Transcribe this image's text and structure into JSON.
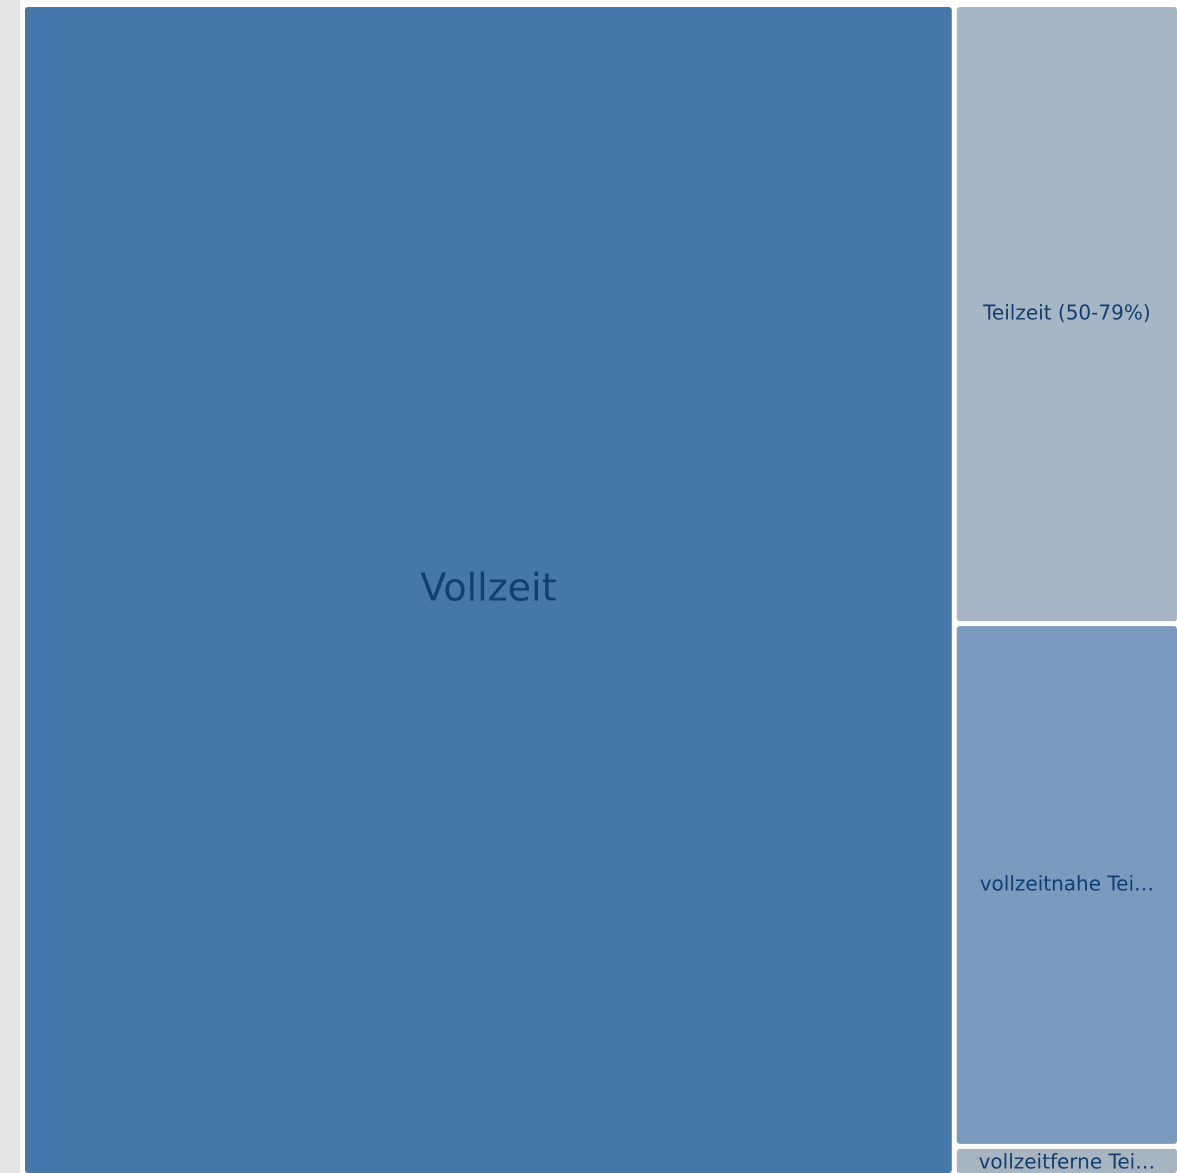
{
  "chart_data": {
    "type": "treemap",
    "categories": [
      "Vollzeit",
      "Teilzeit (50-79%)",
      "vollzeitnahe Tei…",
      "vollzeitferne Tei…"
    ],
    "values": [
      80.8,
      10.2,
      8.6,
      0.4
    ],
    "colors": [
      "#4577ab",
      "#a7b5c4",
      "#7a9abe",
      "#a9b4c1"
    ]
  }
}
